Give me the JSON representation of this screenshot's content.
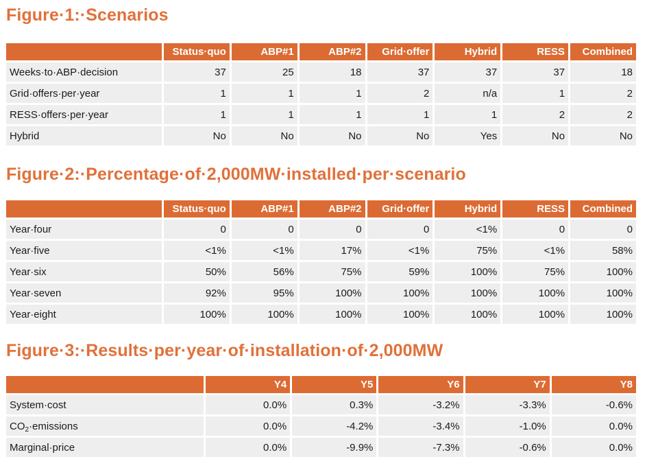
{
  "fig1": {
    "title": "Figure·1:·Scenarios",
    "headers": [
      "Status·quo",
      "ABP#1",
      "ABP#2",
      "Grid·offer",
      "Hybrid",
      "RESS",
      "Combined"
    ],
    "rows": [
      {
        "label": "Weeks·to·ABP·decision",
        "values": [
          "37",
          "25",
          "18",
          "37",
          "37",
          "37",
          "18"
        ]
      },
      {
        "label": "Grid·offers·per·year",
        "values": [
          "1",
          "1",
          "1",
          "2",
          "n/a",
          "1",
          "2"
        ]
      },
      {
        "label": "RESS·offers·per·year",
        "values": [
          "1",
          "1",
          "1",
          "1",
          "1",
          "2",
          "2"
        ]
      },
      {
        "label": "Hybrid",
        "values": [
          "No",
          "No",
          "No",
          "No",
          "Yes",
          "No",
          "No"
        ]
      }
    ]
  },
  "fig2": {
    "title": "Figure·2:·Percentage·of·2,000MW·installed·per·scenario",
    "headers": [
      "Status·quo",
      "ABP#1",
      "ABP#2",
      "Grid·offer",
      "Hybrid",
      "RESS",
      "Combined"
    ],
    "rows": [
      {
        "label": "Year·four",
        "values": [
          "0",
          "0",
          "0",
          "0",
          "<1%",
          "0",
          "0"
        ]
      },
      {
        "label": "Year·five",
        "values": [
          "<1%",
          "<1%",
          "17%",
          "<1%",
          "75%",
          "<1%",
          "58%"
        ]
      },
      {
        "label": "Year·six",
        "values": [
          "50%",
          "56%",
          "75%",
          "59%",
          "100%",
          "75%",
          "100%"
        ]
      },
      {
        "label": "Year·seven",
        "values": [
          "92%",
          "95%",
          "100%",
          "100%",
          "100%",
          "100%",
          "100%"
        ]
      },
      {
        "label": "Year·eight",
        "values": [
          "100%",
          "100%",
          "100%",
          "100%",
          "100%",
          "100%",
          "100%"
        ]
      }
    ]
  },
  "fig3": {
    "title": "Figure·3:·Results·per·year·of·installation·of·2,000MW",
    "headers": [
      "Y4",
      "Y5",
      "Y6",
      "Y7",
      "Y8"
    ],
    "rows": [
      {
        "label": "System·cost",
        "values": [
          "0.0%",
          "0.3%",
          "-3.2%",
          "-3.3%",
          "-0.6%"
        ]
      },
      {
        "label": "CO",
        "label_sub": "2",
        "label_after": "·emissions",
        "values": [
          "0.0%",
          "-4.2%",
          "-3.4%",
          "-1.0%",
          "0.0%"
        ]
      },
      {
        "label": "Marginal·price",
        "values": [
          "0.0%",
          "-9.9%",
          "-7.3%",
          "-0.6%",
          "0.0%"
        ]
      }
    ]
  },
  "colors": {
    "accent": "#dc6b33",
    "title": "#e0713a",
    "cell": "#eeeeee"
  }
}
